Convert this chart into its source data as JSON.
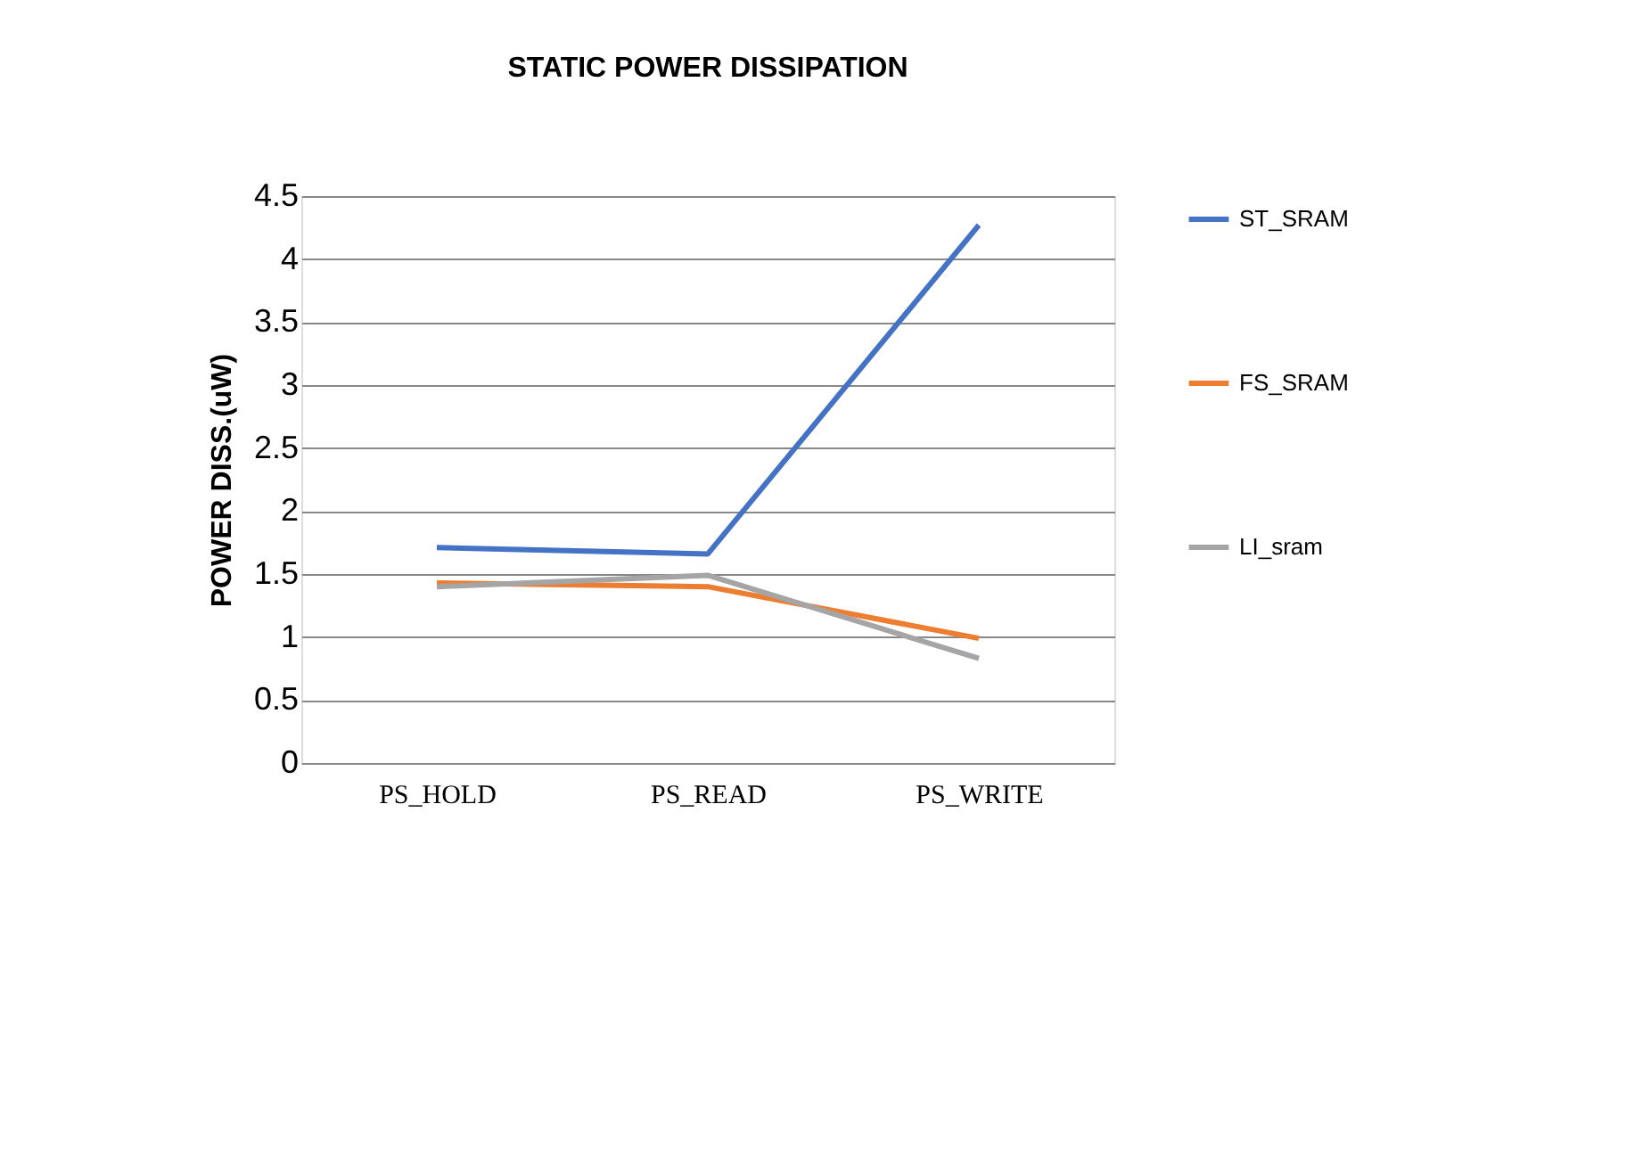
{
  "chart_data": {
    "type": "line",
    "title": "STATIC POWER DISSIPATION",
    "ylabel": "POWER DISS.(uW)",
    "categories": [
      "PS_HOLD",
      "PS_READ",
      "PS_WRITE"
    ],
    "series": [
      {
        "name": "ST_SRAM",
        "color": "#4472c4",
        "values": [
          1.71,
          1.66,
          4.27
        ]
      },
      {
        "name": "FS_SRAM",
        "color": "#ed7d31",
        "values": [
          1.43,
          1.4,
          0.99
        ]
      },
      {
        "name": "LI_sram",
        "color": "#a5a5a5",
        "values": [
          1.4,
          1.49,
          0.83
        ]
      }
    ],
    "ylim": [
      0,
      4.5
    ],
    "yticks": [
      0,
      0.5,
      1,
      1.5,
      2,
      2.5,
      3,
      3.5,
      4,
      4.5
    ],
    "grid": "y",
    "legend": "right",
    "marker": "none",
    "line_style": "solid"
  }
}
